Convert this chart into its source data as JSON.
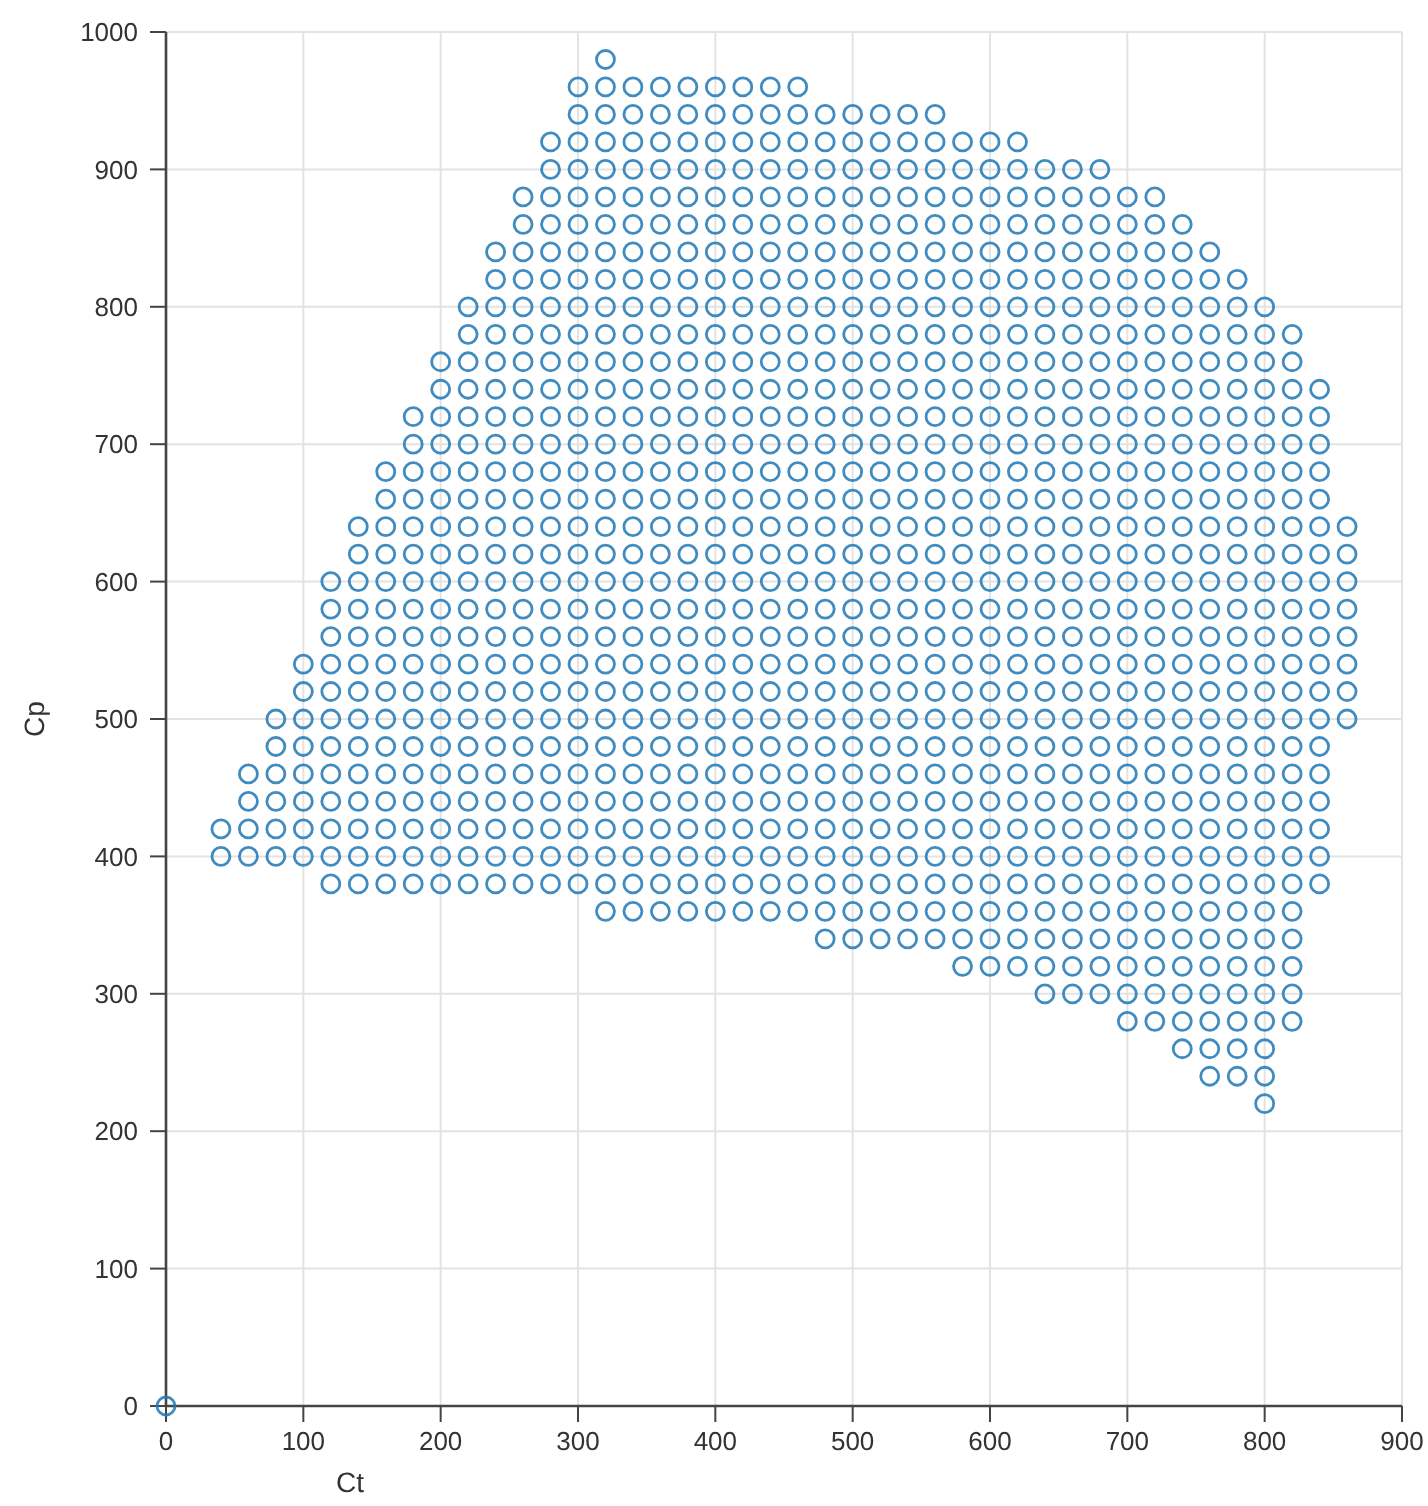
{
  "chart_data": {
    "type": "scatter",
    "xlabel": "Ct",
    "ylabel": "Cp",
    "xlim": [
      0,
      900
    ],
    "ylim": [
      0,
      1000
    ],
    "xticks": [
      0,
      100,
      200,
      300,
      400,
      500,
      600,
      700,
      800,
      900
    ],
    "yticks": [
      0,
      100,
      200,
      300,
      400,
      500,
      600,
      700,
      800,
      900,
      1000
    ],
    "grid": true,
    "marker": "circle",
    "series": [
      {
        "color": "#1f77b4",
        "x": [
          320
        ],
        "values": [
          980
        ]
      },
      {
        "color": "#1f77b4",
        "x": [
          300,
          320,
          340,
          360,
          380,
          400,
          420,
          440,
          460
        ],
        "values": [
          960,
          960,
          960,
          960,
          960,
          960,
          960,
          960,
          960
        ]
      },
      {
        "color": "#1f77b4",
        "x": [
          300,
          320,
          340,
          360,
          380,
          400,
          420,
          440,
          460,
          480,
          500,
          520,
          540,
          560
        ],
        "values": [
          940,
          940,
          940,
          940,
          940,
          940,
          940,
          940,
          940,
          940,
          940,
          940,
          940,
          940
        ]
      },
      {
        "color": "#1f77b4",
        "x": [
          280,
          300,
          320,
          340,
          360,
          380,
          400,
          420,
          440,
          460,
          480,
          500,
          520,
          540,
          560,
          580,
          600,
          620
        ],
        "values": [
          920,
          920,
          920,
          920,
          920,
          920,
          920,
          920,
          920,
          920,
          920,
          920,
          920,
          920,
          920,
          920,
          920,
          920
        ]
      },
      {
        "color": "#1f77b4",
        "x": [
          280,
          300,
          320,
          340,
          360,
          380,
          400,
          420,
          440,
          460,
          480,
          500,
          520,
          540,
          560,
          580,
          600,
          620,
          640,
          660,
          680
        ],
        "values": [
          900,
          900,
          900,
          900,
          900,
          900,
          900,
          900,
          900,
          900,
          900,
          900,
          900,
          900,
          900,
          900,
          900,
          900,
          900,
          900,
          900
        ]
      },
      {
        "color": "#1f77b4",
        "x": [
          260,
          280,
          300,
          320,
          340,
          360,
          380,
          400,
          420,
          440,
          460,
          480,
          500,
          520,
          540,
          560,
          580,
          600,
          620,
          640,
          660,
          680,
          700,
          720
        ],
        "values": [
          880,
          880,
          880,
          880,
          880,
          880,
          880,
          880,
          880,
          880,
          880,
          880,
          880,
          880,
          880,
          880,
          880,
          880,
          880,
          880,
          880,
          880,
          880,
          880
        ]
      },
      {
        "color": "#1f77b4",
        "x": [
          260,
          280,
          300,
          320,
          340,
          360,
          380,
          400,
          420,
          440,
          460,
          480,
          500,
          520,
          540,
          560,
          580,
          600,
          620,
          640,
          660,
          680,
          700,
          720,
          740
        ],
        "values": [
          860,
          860,
          860,
          860,
          860,
          860,
          860,
          860,
          860,
          860,
          860,
          860,
          860,
          860,
          860,
          860,
          860,
          860,
          860,
          860,
          860,
          860,
          860,
          860,
          860
        ]
      },
      {
        "color": "#1f77b4",
        "x": [
          240,
          260,
          280,
          300,
          320,
          340,
          360,
          380,
          400,
          420,
          440,
          460,
          480,
          500,
          520,
          540,
          560,
          580,
          600,
          620,
          640,
          660,
          680,
          700,
          720,
          740,
          760
        ],
        "values": [
          840,
          840,
          840,
          840,
          840,
          840,
          840,
          840,
          840,
          840,
          840,
          840,
          840,
          840,
          840,
          840,
          840,
          840,
          840,
          840,
          840,
          840,
          840,
          840,
          840,
          840,
          840
        ]
      },
      {
        "color": "#1f77b4",
        "x": [
          240,
          260,
          280,
          300,
          320,
          340,
          360,
          380,
          400,
          420,
          440,
          460,
          480,
          500,
          520,
          540,
          560,
          580,
          600,
          620,
          640,
          660,
          680,
          700,
          720,
          740,
          760,
          780
        ],
        "values": [
          820,
          820,
          820,
          820,
          820,
          820,
          820,
          820,
          820,
          820,
          820,
          820,
          820,
          820,
          820,
          820,
          820,
          820,
          820,
          820,
          820,
          820,
          820,
          820,
          820,
          820,
          820,
          820
        ]
      },
      {
        "color": "#1f77b4",
        "x": [
          220,
          240,
          260,
          280,
          300,
          320,
          340,
          360,
          380,
          400,
          420,
          440,
          460,
          480,
          500,
          520,
          540,
          560,
          580,
          600,
          620,
          640,
          660,
          680,
          700,
          720,
          740,
          760,
          780,
          800
        ],
        "values": [
          800,
          800,
          800,
          800,
          800,
          800,
          800,
          800,
          800,
          800,
          800,
          800,
          800,
          800,
          800,
          800,
          800,
          800,
          800,
          800,
          800,
          800,
          800,
          800,
          800,
          800,
          800,
          800,
          800,
          800
        ]
      },
      {
        "color": "#1f77b4",
        "x": [
          220,
          240,
          260,
          280,
          300,
          320,
          340,
          360,
          380,
          400,
          420,
          440,
          460,
          480,
          500,
          520,
          540,
          560,
          580,
          600,
          620,
          640,
          660,
          680,
          700,
          720,
          740,
          760,
          780,
          800,
          820
        ],
        "values": [
          780,
          780,
          780,
          780,
          780,
          780,
          780,
          780,
          780,
          780,
          780,
          780,
          780,
          780,
          780,
          780,
          780,
          780,
          780,
          780,
          780,
          780,
          780,
          780,
          780,
          780,
          780,
          780,
          780,
          780,
          780
        ]
      },
      {
        "color": "#1f77b4",
        "x": [
          200,
          220,
          240,
          260,
          280,
          300,
          320,
          340,
          360,
          380,
          400,
          420,
          440,
          460,
          480,
          500,
          520,
          540,
          560,
          580,
          600,
          620,
          640,
          660,
          680,
          700,
          720,
          740,
          760,
          780,
          800,
          820
        ],
        "values": [
          760,
          760,
          760,
          760,
          760,
          760,
          760,
          760,
          760,
          760,
          760,
          760,
          760,
          760,
          760,
          760,
          760,
          760,
          760,
          760,
          760,
          760,
          760,
          760,
          760,
          760,
          760,
          760,
          760,
          760,
          760,
          760
        ]
      },
      {
        "color": "#1f77b4",
        "x": [
          200,
          220,
          240,
          260,
          280,
          300,
          320,
          340,
          360,
          380,
          400,
          420,
          440,
          460,
          480,
          500,
          520,
          540,
          560,
          580,
          600,
          620,
          640,
          660,
          680,
          700,
          720,
          740,
          760,
          780,
          800,
          820,
          840
        ],
        "values": [
          740,
          740,
          740,
          740,
          740,
          740,
          740,
          740,
          740,
          740,
          740,
          740,
          740,
          740,
          740,
          740,
          740,
          740,
          740,
          740,
          740,
          740,
          740,
          740,
          740,
          740,
          740,
          740,
          740,
          740,
          740,
          740,
          740
        ]
      },
      {
        "color": "#1f77b4",
        "x": [
          180,
          200,
          220,
          240,
          260,
          280,
          300,
          320,
          340,
          360,
          380,
          400,
          420,
          440,
          460,
          480,
          500,
          520,
          540,
          560,
          580,
          600,
          620,
          640,
          660,
          680,
          700,
          720,
          740,
          760,
          780,
          800,
          820,
          840
        ],
        "values": [
          720,
          720,
          720,
          720,
          720,
          720,
          720,
          720,
          720,
          720,
          720,
          720,
          720,
          720,
          720,
          720,
          720,
          720,
          720,
          720,
          720,
          720,
          720,
          720,
          720,
          720,
          720,
          720,
          720,
          720,
          720,
          720,
          720,
          720
        ]
      },
      {
        "color": "#1f77b4",
        "x": [
          180,
          200,
          220,
          240,
          260,
          280,
          300,
          320,
          340,
          360,
          380,
          400,
          420,
          440,
          460,
          480,
          500,
          520,
          540,
          560,
          580,
          600,
          620,
          640,
          660,
          680,
          700,
          720,
          740,
          760,
          780,
          800,
          820,
          840
        ],
        "values": [
          700,
          700,
          700,
          700,
          700,
          700,
          700,
          700,
          700,
          700,
          700,
          700,
          700,
          700,
          700,
          700,
          700,
          700,
          700,
          700,
          700,
          700,
          700,
          700,
          700,
          700,
          700,
          700,
          700,
          700,
          700,
          700,
          700,
          700
        ]
      },
      {
        "color": "#1f77b4",
        "x": [
          160,
          180,
          200,
          220,
          240,
          260,
          280,
          300,
          320,
          340,
          360,
          380,
          400,
          420,
          440,
          460,
          480,
          500,
          520,
          540,
          560,
          580,
          600,
          620,
          640,
          660,
          680,
          700,
          720,
          740,
          760,
          780,
          800,
          820,
          840
        ],
        "values": [
          680,
          680,
          680,
          680,
          680,
          680,
          680,
          680,
          680,
          680,
          680,
          680,
          680,
          680,
          680,
          680,
          680,
          680,
          680,
          680,
          680,
          680,
          680,
          680,
          680,
          680,
          680,
          680,
          680,
          680,
          680,
          680,
          680,
          680,
          680
        ]
      },
      {
        "color": "#1f77b4",
        "x": [
          160,
          180,
          200,
          220,
          240,
          260,
          280,
          300,
          320,
          340,
          360,
          380,
          400,
          420,
          440,
          460,
          480,
          500,
          520,
          540,
          560,
          580,
          600,
          620,
          640,
          660,
          680,
          700,
          720,
          740,
          760,
          780,
          800,
          820,
          840
        ],
        "values": [
          660,
          660,
          660,
          660,
          660,
          660,
          660,
          660,
          660,
          660,
          660,
          660,
          660,
          660,
          660,
          660,
          660,
          660,
          660,
          660,
          660,
          660,
          660,
          660,
          660,
          660,
          660,
          660,
          660,
          660,
          660,
          660,
          660,
          660,
          660
        ]
      },
      {
        "color": "#1f77b4",
        "x": [
          140,
          160,
          180,
          200,
          220,
          240,
          260,
          280,
          300,
          320,
          340,
          360,
          380,
          400,
          420,
          440,
          460,
          480,
          500,
          520,
          540,
          560,
          580,
          600,
          620,
          640,
          660,
          680,
          700,
          720,
          740,
          760,
          780,
          800,
          820,
          840,
          860
        ],
        "values": [
          640,
          640,
          640,
          640,
          640,
          640,
          640,
          640,
          640,
          640,
          640,
          640,
          640,
          640,
          640,
          640,
          640,
          640,
          640,
          640,
          640,
          640,
          640,
          640,
          640,
          640,
          640,
          640,
          640,
          640,
          640,
          640,
          640,
          640,
          640,
          640,
          640
        ]
      },
      {
        "color": "#1f77b4",
        "x": [
          140,
          160,
          180,
          200,
          220,
          240,
          260,
          280,
          300,
          320,
          340,
          360,
          380,
          400,
          420,
          440,
          460,
          480,
          500,
          520,
          540,
          560,
          580,
          600,
          620,
          640,
          660,
          680,
          700,
          720,
          740,
          760,
          780,
          800,
          820,
          840,
          860
        ],
        "values": [
          620,
          620,
          620,
          620,
          620,
          620,
          620,
          620,
          620,
          620,
          620,
          620,
          620,
          620,
          620,
          620,
          620,
          620,
          620,
          620,
          620,
          620,
          620,
          620,
          620,
          620,
          620,
          620,
          620,
          620,
          620,
          620,
          620,
          620,
          620,
          620,
          620
        ]
      },
      {
        "color": "#1f77b4",
        "x": [
          120,
          140,
          160,
          180,
          200,
          220,
          240,
          260,
          280,
          300,
          320,
          340,
          360,
          380,
          400,
          420,
          440,
          460,
          480,
          500,
          520,
          540,
          560,
          580,
          600,
          620,
          640,
          660,
          680,
          700,
          720,
          740,
          760,
          780,
          800,
          820,
          840,
          860
        ],
        "values": [
          600,
          600,
          600,
          600,
          600,
          600,
          600,
          600,
          600,
          600,
          600,
          600,
          600,
          600,
          600,
          600,
          600,
          600,
          600,
          600,
          600,
          600,
          600,
          600,
          600,
          600,
          600,
          600,
          600,
          600,
          600,
          600,
          600,
          600,
          600,
          600,
          600,
          600
        ]
      },
      {
        "color": "#1f77b4",
        "x": [
          120,
          140,
          160,
          180,
          200,
          220,
          240,
          260,
          280,
          300,
          320,
          340,
          360,
          380,
          400,
          420,
          440,
          460,
          480,
          500,
          520,
          540,
          560,
          580,
          600,
          620,
          640,
          660,
          680,
          700,
          720,
          740,
          760,
          780,
          800,
          820,
          840,
          860
        ],
        "values": [
          580,
          580,
          580,
          580,
          580,
          580,
          580,
          580,
          580,
          580,
          580,
          580,
          580,
          580,
          580,
          580,
          580,
          580,
          580,
          580,
          580,
          580,
          580,
          580,
          580,
          580,
          580,
          580,
          580,
          580,
          580,
          580,
          580,
          580,
          580,
          580,
          580,
          580
        ]
      },
      {
        "color": "#1f77b4",
        "x": [
          120,
          140,
          160,
          180,
          200,
          220,
          240,
          260,
          280,
          300,
          320,
          340,
          360,
          380,
          400,
          420,
          440,
          460,
          480,
          500,
          520,
          540,
          560,
          580,
          600,
          620,
          640,
          660,
          680,
          700,
          720,
          740,
          760,
          780,
          800,
          820,
          840,
          860
        ],
        "values": [
          560,
          560,
          560,
          560,
          560,
          560,
          560,
          560,
          560,
          560,
          560,
          560,
          560,
          560,
          560,
          560,
          560,
          560,
          560,
          560,
          560,
          560,
          560,
          560,
          560,
          560,
          560,
          560,
          560,
          560,
          560,
          560,
          560,
          560,
          560,
          560,
          560,
          560
        ]
      },
      {
        "color": "#1f77b4",
        "x": [
          100,
          120,
          140,
          160,
          180,
          200,
          220,
          240,
          260,
          280,
          300,
          320,
          340,
          360,
          380,
          400,
          420,
          440,
          460,
          480,
          500,
          520,
          540,
          560,
          580,
          600,
          620,
          640,
          660,
          680,
          700,
          720,
          740,
          760,
          780,
          800,
          820,
          840,
          860
        ],
        "values": [
          540,
          540,
          540,
          540,
          540,
          540,
          540,
          540,
          540,
          540,
          540,
          540,
          540,
          540,
          540,
          540,
          540,
          540,
          540,
          540,
          540,
          540,
          540,
          540,
          540,
          540,
          540,
          540,
          540,
          540,
          540,
          540,
          540,
          540,
          540,
          540,
          540,
          540,
          540
        ]
      },
      {
        "color": "#1f77b4",
        "x": [
          100,
          120,
          140,
          160,
          180,
          200,
          220,
          240,
          260,
          280,
          300,
          320,
          340,
          360,
          380,
          400,
          420,
          440,
          460,
          480,
          500,
          520,
          540,
          560,
          580,
          600,
          620,
          640,
          660,
          680,
          700,
          720,
          740,
          760,
          780,
          800,
          820,
          840,
          860
        ],
        "values": [
          520,
          520,
          520,
          520,
          520,
          520,
          520,
          520,
          520,
          520,
          520,
          520,
          520,
          520,
          520,
          520,
          520,
          520,
          520,
          520,
          520,
          520,
          520,
          520,
          520,
          520,
          520,
          520,
          520,
          520,
          520,
          520,
          520,
          520,
          520,
          520,
          520,
          520,
          520
        ]
      },
      {
        "color": "#1f77b4",
        "x": [
          80,
          100,
          120,
          140,
          160,
          180,
          200,
          220,
          240,
          260,
          280,
          300,
          320,
          340,
          360,
          380,
          400,
          420,
          440,
          460,
          480,
          500,
          520,
          540,
          560,
          580,
          600,
          620,
          640,
          660,
          680,
          700,
          720,
          740,
          760,
          780,
          800,
          820,
          840,
          860
        ],
        "values": [
          500,
          500,
          500,
          500,
          500,
          500,
          500,
          500,
          500,
          500,
          500,
          500,
          500,
          500,
          500,
          500,
          500,
          500,
          500,
          500,
          500,
          500,
          500,
          500,
          500,
          500,
          500,
          500,
          500,
          500,
          500,
          500,
          500,
          500,
          500,
          500,
          500,
          500,
          500,
          500
        ]
      },
      {
        "color": "#1f77b4",
        "x": [
          80,
          100,
          120,
          140,
          160,
          180,
          200,
          220,
          240,
          260,
          280,
          300,
          320,
          340,
          360,
          380,
          400,
          420,
          440,
          460,
          480,
          500,
          520,
          540,
          560,
          580,
          600,
          620,
          640,
          660,
          680,
          700,
          720,
          740,
          760,
          780,
          800,
          820,
          840
        ],
        "values": [
          480,
          480,
          480,
          480,
          480,
          480,
          480,
          480,
          480,
          480,
          480,
          480,
          480,
          480,
          480,
          480,
          480,
          480,
          480,
          480,
          480,
          480,
          480,
          480,
          480,
          480,
          480,
          480,
          480,
          480,
          480,
          480,
          480,
          480,
          480,
          480,
          480,
          480,
          480
        ]
      },
      {
        "color": "#1f77b4",
        "x": [
          60,
          80,
          100,
          120,
          140,
          160,
          180,
          200,
          220,
          240,
          260,
          280,
          300,
          320,
          340,
          360,
          380,
          400,
          420,
          440,
          460,
          480,
          500,
          520,
          540,
          560,
          580,
          600,
          620,
          640,
          660,
          680,
          700,
          720,
          740,
          760,
          780,
          800,
          820,
          840
        ],
        "values": [
          460,
          460,
          460,
          460,
          460,
          460,
          460,
          460,
          460,
          460,
          460,
          460,
          460,
          460,
          460,
          460,
          460,
          460,
          460,
          460,
          460,
          460,
          460,
          460,
          460,
          460,
          460,
          460,
          460,
          460,
          460,
          460,
          460,
          460,
          460,
          460,
          460,
          460,
          460,
          460
        ]
      },
      {
        "color": "#1f77b4",
        "x": [
          60,
          80,
          100,
          120,
          140,
          160,
          180,
          200,
          220,
          240,
          260,
          280,
          300,
          320,
          340,
          360,
          380,
          400,
          420,
          440,
          460,
          480,
          500,
          520,
          540,
          560,
          580,
          600,
          620,
          640,
          660,
          680,
          700,
          720,
          740,
          760,
          780,
          800,
          820,
          840
        ],
        "values": [
          440,
          440,
          440,
          440,
          440,
          440,
          440,
          440,
          440,
          440,
          440,
          440,
          440,
          440,
          440,
          440,
          440,
          440,
          440,
          440,
          440,
          440,
          440,
          440,
          440,
          440,
          440,
          440,
          440,
          440,
          440,
          440,
          440,
          440,
          440,
          440,
          440,
          440,
          440,
          440
        ]
      },
      {
        "color": "#1f77b4",
        "x": [
          40,
          60,
          80,
          100,
          120,
          140,
          160,
          180,
          200,
          220,
          240,
          260,
          280,
          300,
          320,
          340,
          360,
          380,
          400,
          420,
          440,
          460,
          480,
          500,
          520,
          540,
          560,
          580,
          600,
          620,
          640,
          660,
          680,
          700,
          720,
          740,
          760,
          780,
          800,
          820,
          840
        ],
        "values": [
          420,
          420,
          420,
          420,
          420,
          420,
          420,
          420,
          420,
          420,
          420,
          420,
          420,
          420,
          420,
          420,
          420,
          420,
          420,
          420,
          420,
          420,
          420,
          420,
          420,
          420,
          420,
          420,
          420,
          420,
          420,
          420,
          420,
          420,
          420,
          420,
          420,
          420,
          420,
          420,
          420
        ]
      },
      {
        "color": "#1f77b4",
        "x": [
          40,
          60,
          80,
          100,
          120,
          140,
          160,
          180,
          200,
          220,
          240,
          260,
          280,
          300,
          320,
          340,
          360,
          380,
          400,
          420,
          440,
          460,
          480,
          500,
          520,
          540,
          560,
          580,
          600,
          620,
          640,
          660,
          680,
          700,
          720,
          740,
          760,
          780,
          800,
          820,
          840
        ],
        "values": [
          400,
          400,
          400,
          400,
          400,
          400,
          400,
          400,
          400,
          400,
          400,
          400,
          400,
          400,
          400,
          400,
          400,
          400,
          400,
          400,
          400,
          400,
          400,
          400,
          400,
          400,
          400,
          400,
          400,
          400,
          400,
          400,
          400,
          400,
          400,
          400,
          400,
          400,
          400,
          400,
          400
        ]
      },
      {
        "color": "#1f77b4",
        "x": [
          120,
          140,
          160,
          180,
          200,
          220,
          240,
          260,
          280,
          300,
          320,
          340,
          360,
          380,
          400,
          420,
          440,
          460,
          480,
          500,
          520,
          540,
          560,
          580,
          600,
          620,
          640,
          660,
          680,
          700,
          720,
          740,
          760,
          780,
          800,
          820,
          840
        ],
        "values": [
          380,
          380,
          380,
          380,
          380,
          380,
          380,
          380,
          380,
          380,
          380,
          380,
          380,
          380,
          380,
          380,
          380,
          380,
          380,
          380,
          380,
          380,
          380,
          380,
          380,
          380,
          380,
          380,
          380,
          380,
          380,
          380,
          380,
          380,
          380,
          380,
          380
        ]
      },
      {
        "color": "#1f77b4",
        "x": [
          320,
          340,
          360,
          380,
          400,
          420,
          440,
          460,
          480,
          500,
          520,
          540,
          560,
          580,
          600,
          620,
          640,
          660,
          680,
          700,
          720,
          740,
          760,
          780,
          800,
          820
        ],
        "values": [
          360,
          360,
          360,
          360,
          360,
          360,
          360,
          360,
          360,
          360,
          360,
          360,
          360,
          360,
          360,
          360,
          360,
          360,
          360,
          360,
          360,
          360,
          360,
          360,
          360,
          360
        ]
      },
      {
        "color": "#1f77b4",
        "x": [
          480,
          500,
          520,
          540,
          560,
          580,
          600,
          620,
          640,
          660,
          680,
          700,
          720,
          740,
          760,
          780,
          800,
          820
        ],
        "values": [
          340,
          340,
          340,
          340,
          340,
          340,
          340,
          340,
          340,
          340,
          340,
          340,
          340,
          340,
          340,
          340,
          340,
          340
        ]
      },
      {
        "color": "#1f77b4",
        "x": [
          580,
          600,
          620,
          640,
          660,
          680,
          700,
          720,
          740,
          760,
          780,
          800,
          820
        ],
        "values": [
          320,
          320,
          320,
          320,
          320,
          320,
          320,
          320,
          320,
          320,
          320,
          320,
          320
        ]
      },
      {
        "color": "#1f77b4",
        "x": [
          640,
          660,
          680,
          700,
          720,
          740,
          760,
          780,
          800,
          820
        ],
        "values": [
          300,
          300,
          300,
          300,
          300,
          300,
          300,
          300,
          300,
          300
        ]
      },
      {
        "color": "#1f77b4",
        "x": [
          700,
          720,
          740,
          760,
          780,
          800,
          820
        ],
        "values": [
          280,
          280,
          280,
          280,
          280,
          280,
          280
        ]
      },
      {
        "color": "#1f77b4",
        "x": [
          740,
          760,
          780,
          800
        ],
        "values": [
          260,
          260,
          260,
          260
        ]
      },
      {
        "color": "#1f77b4",
        "x": [
          760,
          780,
          800
        ],
        "values": [
          240,
          240,
          240
        ]
      },
      {
        "color": "#1f77b4",
        "x": [
          800
        ],
        "values": [
          220
        ]
      },
      {
        "color": "#1f77b4",
        "x": [
          0
        ],
        "values": [
          0
        ]
      }
    ]
  }
}
